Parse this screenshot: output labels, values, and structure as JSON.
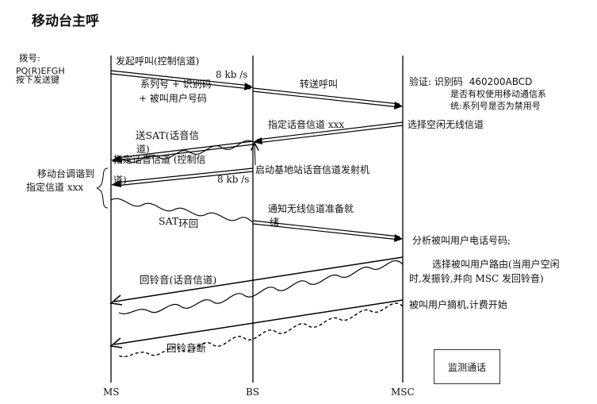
{
  "title": "移动台主呼",
  "columns": {
    "ms": "MS",
    "bs": "BS",
    "msc": "MSC"
  },
  "left_notes": {
    "dial_label": "拨号:",
    "dial_number": "PQ(R)EFGH",
    "send_key": "按下发送键",
    "tune_line1": "移动台调谐到",
    "tune_line2": "指定信道 xxx"
  },
  "messages": {
    "initiate_call": "发起呼叫(控制信道)",
    "rate_1": "8 kb /s",
    "serial_line1": "系列号 + 识别码",
    "serial_line2": "+ 被叫用户号码",
    "forward_call": "转送呼叫",
    "assign_channel": "指定话音信道 xxx",
    "send_sat_1": "送SAT(话音信",
    "send_sat_2": "道)",
    "assign_ctrl_1": "指定话音信道 (控制信",
    "assign_ctrl_2": "道)",
    "rate_2": "8 kb /s",
    "start_tx": "启动基地站话音信道发射机",
    "sat_loop_pre": "SAT",
    "sat_loop_post": "环回",
    "notify_1": "通知无线信道准备就",
    "notify_2": "绪",
    "ringback": "回铃音(话音信道)",
    "ringback_off": "回铃音断"
  },
  "right_notes": {
    "verify_label": "验证:",
    "verify_id": "识别码",
    "verify_code": "460200ABCD",
    "verify_line2": "是否有权使用移动通信系",
    "verify_line3": "统:系列号是否为禁用号",
    "select_channel": "选择空闲无线信道",
    "analyze": "分析被叫用户电话号码;",
    "route_1": "选择被叫用户路由(当用户空闲",
    "route_2": "时,发振铃,并向 MSC 发回铃音)",
    "answer": "被叫用户摘机,计费开始"
  },
  "monitor_box": "监测通话"
}
